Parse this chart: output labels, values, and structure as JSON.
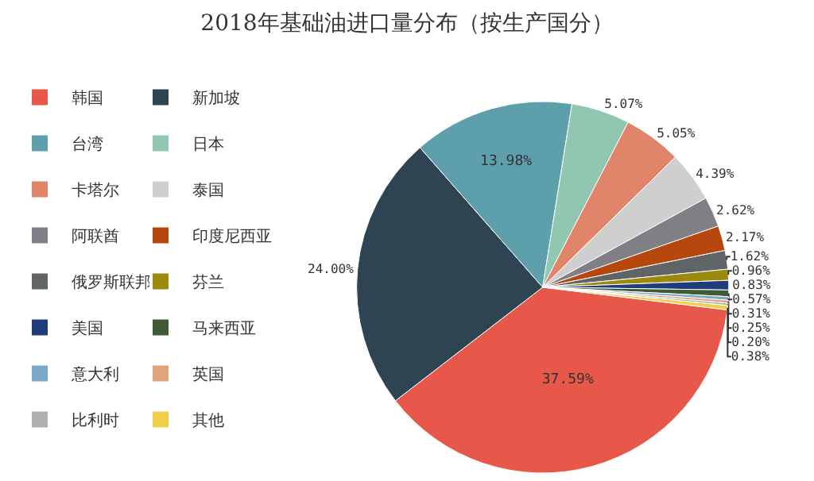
{
  "chart_data": {
    "type": "pie",
    "title": "2018年基础油进口量分布（按生产国分）",
    "categories": [
      "韩国",
      "新加坡",
      "台湾",
      "日本",
      "卡塔尔",
      "泰国",
      "阿联酋",
      "印度尼西亚",
      "俄罗斯联邦",
      "芬兰",
      "美国",
      "马来西亚",
      "意大利",
      "英国",
      "比利时",
      "其他"
    ],
    "values": [
      37.59,
      24.0,
      13.98,
      5.07,
      5.05,
      4.39,
      2.62,
      2.17,
      1.62,
      0.96,
      0.83,
      0.57,
      0.31,
      0.25,
      0.2,
      0.38
    ],
    "value_labels": [
      "37.59%",
      "24.00%",
      "13.98%",
      "5.07%",
      "5.05%",
      "4.39%",
      "2.62%",
      "2.17%",
      "1.62%",
      "0.96%",
      "0.83%",
      "0.57%",
      "0.31%",
      "0.25%",
      "0.20%",
      "0.38%"
    ],
    "colors": [
      "#e8584a",
      "#2e4453",
      "#5d9faa",
      "#8fc7b0",
      "#e0856a",
      "#cfcfcf",
      "#7f7f85",
      "#b6480f",
      "#5f6466",
      "#9c8a10",
      "#1e3d7a",
      "#3f5a35",
      "#7ba7c9",
      "#e0a47c",
      "#b0b0b0",
      "#f2cf4a"
    ],
    "legend": "left"
  }
}
